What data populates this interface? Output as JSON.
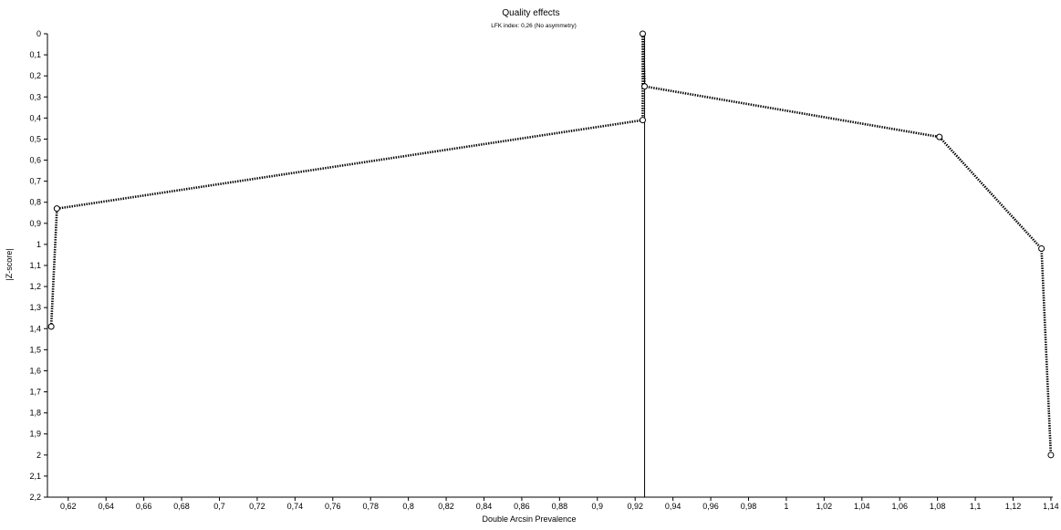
{
  "chart_data": {
    "type": "line",
    "title": "Quality effects",
    "subtitle": "LFK index: 0,26 (No asymmetry)",
    "xlabel": "Double Arcsin Prevalence",
    "ylabel": "|Z-score|",
    "xlim": [
      0.609,
      1.141
    ],
    "ylim": [
      0,
      2.2
    ],
    "y_inverted": true,
    "grid": false,
    "reference_line": {
      "x": 0.925
    },
    "x_ticks": [
      0.62,
      0.64,
      0.66,
      0.68,
      0.7,
      0.72,
      0.74,
      0.76,
      0.78,
      0.8,
      0.82,
      0.84,
      0.86,
      0.88,
      0.9,
      0.92,
      0.94,
      0.96,
      0.98,
      1,
      1.02,
      1.04,
      1.06,
      1.08,
      1.1,
      1.12,
      1.14
    ],
    "x_tick_labels": [
      "0,62",
      "0,64",
      "0,66",
      "0,68",
      "0,7",
      "0,72",
      "0,74",
      "0,76",
      "0,78",
      "0,8",
      "0,82",
      "0,84",
      "0,86",
      "0,88",
      "0,9",
      "0,92",
      "0,94",
      "0,96",
      "0,98",
      "1",
      "1,02",
      "1,04",
      "1,06",
      "1,08",
      "1,1",
      "1,12",
      "1,14"
    ],
    "y_ticks": [
      0,
      0.1,
      0.2,
      0.3,
      0.4,
      0.5,
      0.6,
      0.7,
      0.8,
      0.9,
      1,
      1.1,
      1.2,
      1.3,
      1.4,
      1.5,
      1.6,
      1.7,
      1.8,
      1.9,
      2,
      2.1,
      2.2
    ],
    "y_tick_labels": [
      "0",
      "0,1",
      "0,2",
      "0,3",
      "0,4",
      "0,5",
      "0,6",
      "0,7",
      "0,8",
      "0,9",
      "1",
      "1,1",
      "1,2",
      "1,3",
      "1,4",
      "1,5",
      "1,6",
      "1,7",
      "1,8",
      "1,9",
      "2",
      "2,1",
      "2,2"
    ],
    "left_limb": [
      {
        "x": 0.611,
        "y": 1.39
      },
      {
        "x": 0.614,
        "y": 0.83
      },
      {
        "x": 0.924,
        "y": 0.41
      },
      {
        "x": 0.924,
        "y": 0.0
      }
    ],
    "right_limb": [
      {
        "x": 0.924,
        "y": 0.0
      },
      {
        "x": 0.925,
        "y": 0.25
      },
      {
        "x": 1.081,
        "y": 0.49
      },
      {
        "x": 1.135,
        "y": 1.02
      },
      {
        "x": 1.14,
        "y": 2.0
      }
    ],
    "points": [
      {
        "x": 0.611,
        "y": 1.39
      },
      {
        "x": 0.614,
        "y": 0.83
      },
      {
        "x": 0.924,
        "y": 0.41
      },
      {
        "x": 0.924,
        "y": 0.0
      },
      {
        "x": 0.925,
        "y": 0.25
      },
      {
        "x": 1.081,
        "y": 0.49
      },
      {
        "x": 1.135,
        "y": 1.02
      },
      {
        "x": 1.14,
        "y": 2.0
      }
    ]
  }
}
